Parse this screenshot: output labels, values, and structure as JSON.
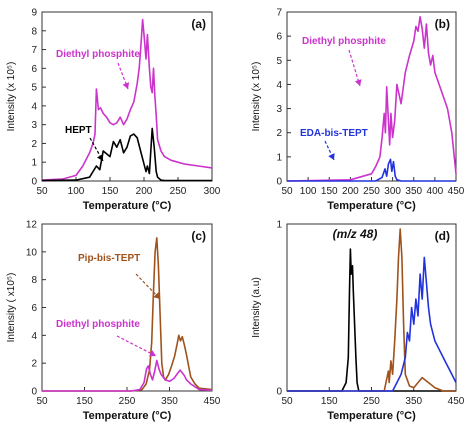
{
  "chart_data": [
    {
      "type": "line",
      "panel_label": "(a)",
      "xlabel": "Temperature (°C)",
      "ylabel": "Intensity (x 10⁵)",
      "xlim": [
        50,
        300
      ],
      "ylim": [
        0,
        9
      ],
      "xticks": [
        50,
        100,
        150,
        200,
        250,
        300
      ],
      "yticks": [
        0,
        1,
        2,
        3,
        4,
        5,
        6,
        7,
        8,
        9
      ],
      "series": [
        {
          "name": "Diethyl phosphite",
          "color": "#cc33cc",
          "x": [
            50,
            80,
            100,
            110,
            120,
            125,
            128,
            130,
            133,
            136,
            140,
            145,
            150,
            155,
            160,
            165,
            170,
            175,
            180,
            185,
            190,
            193,
            196,
            198,
            200,
            203,
            205,
            208,
            210,
            212,
            214,
            216,
            218,
            220,
            225,
            230,
            240,
            260,
            280,
            300
          ],
          "y": [
            0.05,
            0.1,
            0.3,
            0.8,
            1.5,
            2.0,
            2.5,
            4.9,
            3.8,
            3.9,
            3.6,
            3.4,
            3.1,
            3.0,
            3.1,
            3.4,
            3.0,
            3.3,
            3.8,
            4.2,
            5.2,
            6.0,
            7.5,
            8.6,
            7.8,
            6.5,
            7.8,
            6.0,
            5.0,
            4.7,
            6.0,
            4.5,
            3.5,
            2.2,
            1.6,
            1.3,
            1.1,
            0.9,
            0.8,
            0.7
          ]
        },
        {
          "name": "HEPT",
          "color": "#000000",
          "x": [
            50,
            100,
            120,
            130,
            135,
            140,
            150,
            155,
            160,
            165,
            170,
            175,
            180,
            185,
            190,
            195,
            200,
            203,
            205,
            208,
            210,
            212,
            215,
            218,
            220,
            225,
            230,
            300
          ],
          "y": [
            0.02,
            0.05,
            0.2,
            0.8,
            0.6,
            1.6,
            1.3,
            2.1,
            1.8,
            2.2,
            1.5,
            1.8,
            2.4,
            2.5,
            2.3,
            1.6,
            0.9,
            0.5,
            0.8,
            0.4,
            1.6,
            2.8,
            1.8,
            0.5,
            0.2,
            0.05,
            0.02,
            0.02
          ]
        }
      ],
      "annotations": [
        "Diethyl phosphite",
        "HEPT"
      ]
    },
    {
      "type": "line",
      "panel_label": "(b)",
      "xlabel": "Temperature (°C)",
      "ylabel": "Intensity (x 10⁵)",
      "xlim": [
        50,
        450
      ],
      "ylim": [
        0,
        7
      ],
      "xticks": [
        50,
        100,
        150,
        200,
        250,
        300,
        350,
        400,
        450
      ],
      "yticks": [
        0,
        1,
        2,
        3,
        4,
        5,
        6,
        7
      ],
      "series": [
        {
          "name": "Diethyl phosphite",
          "color": "#cc33cc",
          "x": [
            50,
            200,
            250,
            260,
            270,
            275,
            280,
            283,
            286,
            290,
            293,
            296,
            300,
            305,
            310,
            320,
            330,
            340,
            350,
            355,
            360,
            365,
            370,
            375,
            380,
            385,
            390,
            395,
            400,
            410,
            420,
            430,
            440,
            450
          ],
          "y": [
            0.0,
            0.05,
            0.3,
            0.6,
            1.0,
            1.8,
            2.8,
            2.0,
            3.9,
            2.5,
            1.5,
            2.8,
            1.8,
            2.5,
            4.0,
            3.2,
            4.5,
            5.2,
            5.8,
            6.4,
            6.2,
            6.8,
            6.3,
            5.5,
            6.5,
            5.3,
            4.8,
            5.2,
            4.5,
            4.0,
            3.5,
            3.0,
            2.0,
            0.3
          ]
        },
        {
          "name": "EDA-bis-TEPT",
          "color": "#2233dd",
          "x": [
            50,
            260,
            275,
            282,
            286,
            290,
            295,
            298,
            302,
            306,
            310,
            320,
            450
          ],
          "y": [
            0.0,
            0.0,
            0.15,
            0.5,
            0.2,
            0.7,
            0.9,
            0.4,
            0.8,
            0.2,
            0.05,
            0.0,
            0.0
          ]
        }
      ],
      "annotations": [
        "Diethyl phosphite",
        "EDA-bis-TEPT"
      ]
    },
    {
      "type": "line",
      "panel_label": "(c)",
      "xlabel": "Temperature (°C)",
      "ylabel": "Intensity ( x10⁵)",
      "xlim": [
        50,
        450
      ],
      "ylim": [
        0,
        12
      ],
      "xticks": [
        50,
        150,
        250,
        350,
        450
      ],
      "yticks": [
        0,
        2,
        4,
        6,
        8,
        10,
        12
      ],
      "series": [
        {
          "name": "Pip-bis-TEPT",
          "color": "#a0521d",
          "x": [
            50,
            260,
            285,
            295,
            303,
            308,
            312,
            316,
            320,
            324,
            328,
            332,
            336,
            340,
            348,
            355,
            362,
            368,
            372,
            376,
            380,
            385,
            390,
            395,
            400,
            410,
            420,
            450
          ],
          "y": [
            0.0,
            0.0,
            0.1,
            0.5,
            1.5,
            3.5,
            7.0,
            10.0,
            11.0,
            9.0,
            5.5,
            2.0,
            1.0,
            0.8,
            1.2,
            1.8,
            2.5,
            3.4,
            4.0,
            3.6,
            3.9,
            3.3,
            2.6,
            1.8,
            1.0,
            0.5,
            0.2,
            0.1
          ]
        },
        {
          "name": "Diethyl phosphite",
          "color": "#cc33cc",
          "x": [
            50,
            260,
            280,
            290,
            296,
            300,
            305,
            310,
            315,
            320,
            325,
            330,
            340,
            350,
            360,
            370,
            375,
            380,
            385,
            390,
            400,
            410,
            420,
            450
          ],
          "y": [
            0.0,
            0.0,
            0.1,
            0.6,
            1.6,
            1.8,
            1.2,
            0.8,
            1.4,
            2.2,
            1.6,
            1.2,
            0.8,
            0.7,
            0.9,
            1.3,
            1.5,
            1.3,
            1.1,
            0.8,
            0.5,
            0.3,
            0.1,
            0.05
          ]
        }
      ],
      "annotations": [
        "Pip-bis-TEPT",
        "Diethyl phosphite"
      ]
    },
    {
      "type": "line",
      "panel_label": "(d)",
      "annotation_top": "(m/z 48)",
      "xlabel": "Temperature (°C)",
      "ylabel": "Intensity (a.u)",
      "xlim": [
        50,
        450
      ],
      "ylim": [
        0,
        1
      ],
      "xticks": [
        50,
        150,
        250,
        350,
        450
      ],
      "yticks": [
        0,
        1
      ],
      "series": [
        {
          "color": "#000000",
          "x": [
            50,
            180,
            190,
            195,
            198,
            200,
            202,
            205,
            207,
            210,
            213,
            216,
            220,
            230,
            450
          ],
          "y": [
            0.0,
            0.0,
            0.05,
            0.2,
            0.6,
            0.85,
            0.7,
            0.75,
            0.6,
            0.4,
            0.2,
            0.05,
            0.0,
            0.0,
            0.0
          ]
        },
        {
          "color": "#a0521d",
          "x": [
            50,
            280,
            290,
            292,
            296,
            300,
            305,
            310,
            314,
            318,
            322,
            326,
            330,
            340,
            350,
            360,
            370,
            380,
            390,
            400,
            420,
            450
          ],
          "y": [
            0.0,
            0.0,
            0.12,
            0.05,
            0.18,
            0.1,
            0.3,
            0.55,
            0.8,
            0.97,
            0.8,
            0.4,
            0.1,
            0.03,
            0.02,
            0.05,
            0.08,
            0.06,
            0.04,
            0.02,
            0.0,
            0.0
          ]
        },
        {
          "color": "#2233dd",
          "x": [
            50,
            300,
            310,
            320,
            330,
            335,
            340,
            345,
            350,
            355,
            360,
            365,
            370,
            375,
            380,
            385,
            390,
            400,
            410,
            420,
            430,
            440,
            450
          ],
          "y": [
            0.0,
            0.0,
            0.05,
            0.1,
            0.2,
            0.35,
            0.3,
            0.5,
            0.4,
            0.55,
            0.45,
            0.7,
            0.55,
            0.8,
            0.65,
            0.5,
            0.4,
            0.3,
            0.25,
            0.2,
            0.15,
            0.1,
            0.05
          ]
        }
      ]
    }
  ]
}
